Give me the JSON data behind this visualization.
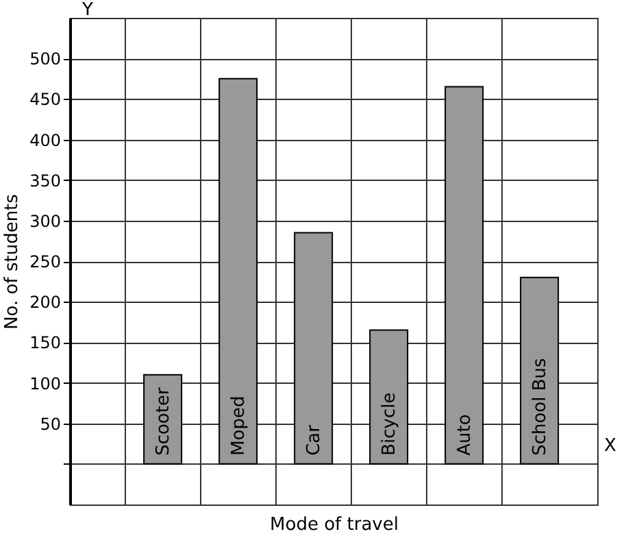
{
  "chart_data": {
    "type": "bar",
    "xlabel": "Mode of travel",
    "ylabel": "No. of students",
    "categories": [
      "Scooter",
      "Moped",
      "Car",
      "Bicycle",
      "Auto",
      "School Bus"
    ],
    "values": [
      110,
      475,
      285,
      165,
      465,
      230
    ],
    "color": "#999999",
    "ylim": [
      -50,
      550
    ],
    "yticks": [
      {
        "value": 0,
        "label": null
      },
      50,
      100,
      150,
      200,
      250,
      300,
      350,
      400,
      450,
      500
    ],
    "grid": true,
    "annotations": [
      "X",
      "Y"
    ]
  }
}
